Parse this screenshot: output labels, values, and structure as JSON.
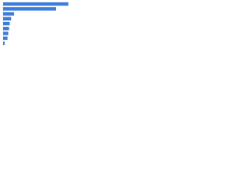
{
  "chart_data": {
    "type": "hbar",
    "categories": [
      null,
      null,
      null,
      null,
      null,
      null,
      null,
      null,
      null
    ],
    "values": [
      89,
      72,
      15,
      11,
      9,
      8,
      7,
      6,
      2
    ],
    "color": "#3b7dd8",
    "xlim": [
      0,
      100
    ]
  }
}
